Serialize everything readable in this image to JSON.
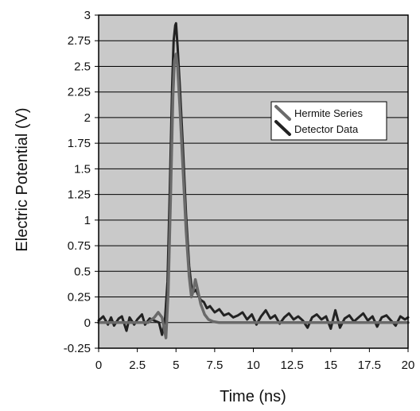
{
  "chart_data": {
    "type": "line",
    "xlabel": "Time (ns)",
    "ylabel": "Electric Potential (V)",
    "xlim": [
      0,
      20
    ],
    "ylim": [
      -0.25,
      3
    ],
    "x_ticks": [
      "0",
      "2.5",
      "5",
      "7.5",
      "10",
      "12.5",
      "15",
      "17.5",
      "20"
    ],
    "y_ticks": [
      "3",
      "2.75",
      "2.5",
      "2.25",
      "2",
      "1.75",
      "1.5",
      "1.25",
      "1",
      "0.75",
      "0.5",
      "0.25",
      "0",
      "-0.25"
    ],
    "grid": "horizontal",
    "legend_position": "upper-right",
    "background_color": "#c9c9c9",
    "series": [
      {
        "name": "Hermite Series",
        "color": "#6a6a6a",
        "x": [
          0,
          3.2,
          3.6,
          3.85,
          4.1,
          4.35,
          4.5,
          4.65,
          4.8,
          4.9,
          5.0,
          5.1,
          5.25,
          5.45,
          5.65,
          5.85,
          6.0,
          6.1,
          6.25,
          6.4,
          6.6,
          6.85,
          7.1,
          7.4,
          7.8,
          20
        ],
        "y": [
          0.0,
          0.0,
          0.05,
          0.1,
          0.05,
          -0.15,
          0.3,
          1.2,
          2.2,
          2.55,
          2.62,
          2.5,
          2.1,
          1.5,
          0.9,
          0.45,
          0.25,
          0.3,
          0.42,
          0.32,
          0.18,
          0.08,
          0.03,
          0.01,
          0.0,
          0.0
        ]
      },
      {
        "name": "Detector Data",
        "color": "#222222",
        "x": [
          0,
          0.3,
          0.6,
          0.8,
          1.0,
          1.3,
          1.5,
          1.8,
          2.0,
          2.3,
          2.5,
          2.8,
          3.0,
          3.3,
          3.6,
          3.9,
          4.1,
          4.3,
          4.45,
          4.6,
          4.75,
          4.85,
          4.95,
          5.0,
          5.1,
          5.25,
          5.45,
          5.65,
          5.85,
          6.0,
          6.15,
          6.3,
          6.45,
          6.6,
          6.8,
          7.0,
          7.2,
          7.5,
          7.8,
          8.1,
          8.4,
          8.7,
          9.0,
          9.3,
          9.6,
          9.9,
          10.2,
          10.5,
          10.8,
          11.1,
          11.4,
          11.7,
          12.0,
          12.3,
          12.6,
          12.9,
          13.2,
          13.5,
          13.8,
          14.1,
          14.4,
          14.7,
          15.0,
          15.3,
          15.6,
          15.9,
          16.2,
          16.5,
          16.8,
          17.1,
          17.4,
          17.7,
          18.0,
          18.3,
          18.6,
          18.9,
          19.2,
          19.5,
          19.8,
          20.0
        ],
        "y": [
          0.02,
          0.06,
          -0.02,
          0.05,
          -0.03,
          0.04,
          0.06,
          -0.08,
          0.05,
          -0.02,
          0.03,
          0.08,
          -0.02,
          0.04,
          0.02,
          0.0,
          -0.12,
          0.05,
          0.4,
          1.3,
          2.3,
          2.75,
          2.9,
          2.92,
          2.7,
          2.3,
          1.7,
          1.05,
          0.55,
          0.35,
          0.3,
          0.32,
          0.26,
          0.22,
          0.2,
          0.14,
          0.16,
          0.1,
          0.13,
          0.07,
          0.09,
          0.05,
          0.07,
          0.1,
          0.03,
          0.08,
          -0.02,
          0.06,
          0.12,
          0.04,
          0.07,
          -0.01,
          0.05,
          0.09,
          0.03,
          0.06,
          0.02,
          -0.05,
          0.05,
          0.08,
          0.03,
          0.06,
          -0.06,
          0.12,
          -0.05,
          0.04,
          0.07,
          0.01,
          0.05,
          0.09,
          0.02,
          0.06,
          -0.04,
          0.05,
          0.07,
          0.02,
          -0.03,
          0.06,
          0.03,
          0.05
        ]
      }
    ]
  }
}
